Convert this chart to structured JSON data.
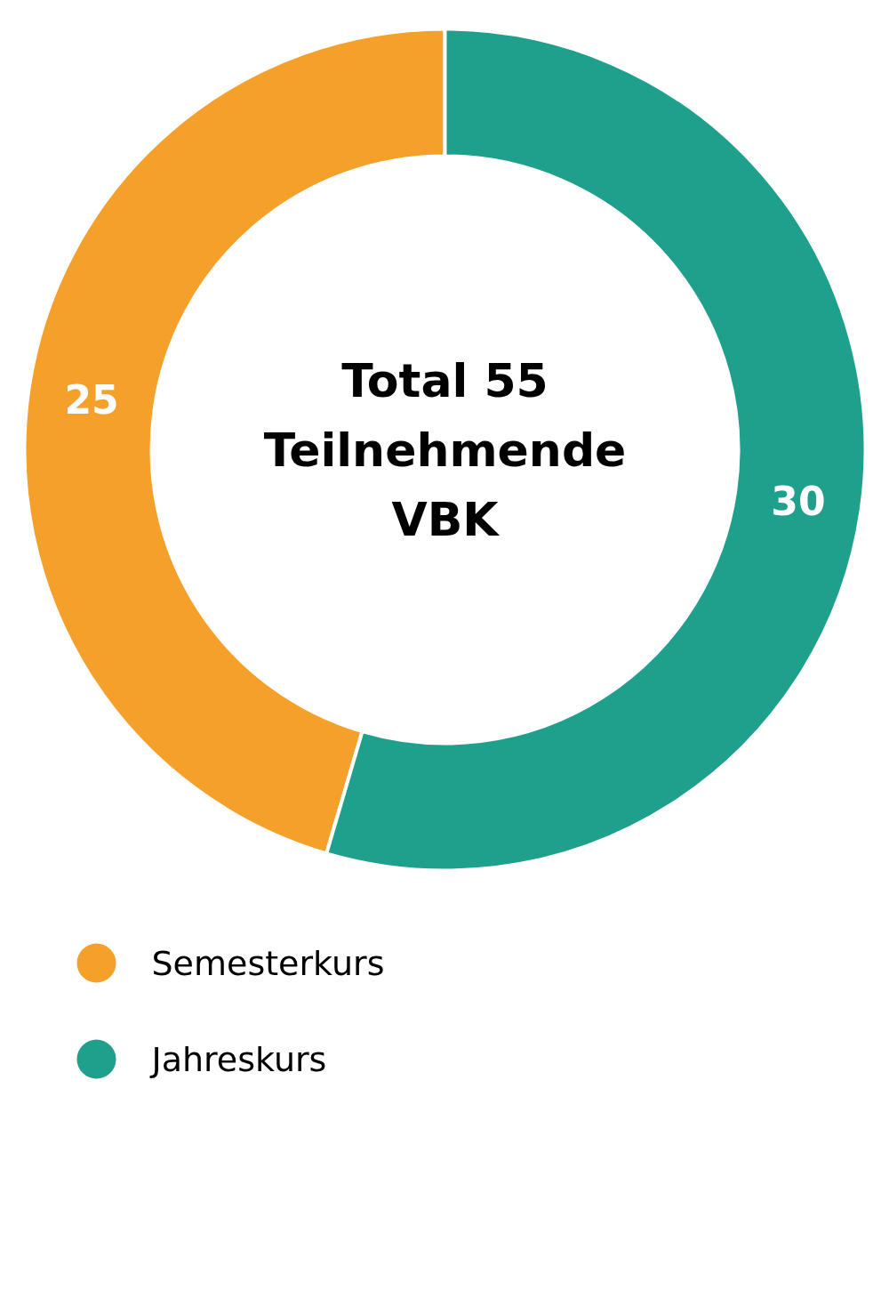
{
  "chart_data": {
    "type": "donut",
    "title": "Total 55\nTeilnehmende\nVBK",
    "categories": [
      "Semesterkurs",
      "Jahreskurs"
    ],
    "values": [
      25,
      30
    ],
    "colors": [
      "#f4a02a",
      "#1fa08c"
    ],
    "data_labels": true,
    "legend": "bottom left"
  }
}
